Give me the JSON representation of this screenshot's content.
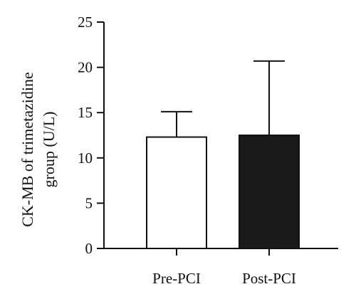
{
  "chart_data": {
    "type": "bar",
    "categories": [
      "Pre-PCI",
      "Post-PCI"
    ],
    "values": [
      12.3,
      12.5
    ],
    "error_upper": [
      15.1,
      20.7
    ],
    "ylabel_lines": [
      "CK-MB of trimetazidine",
      "group (U/L)"
    ],
    "ylim": [
      0,
      25
    ],
    "yticks": [
      0,
      5,
      10,
      15,
      20,
      25
    ],
    "grid": false,
    "legend": "none",
    "bar_fill_colors": [
      "#ffffff",
      "#1a1a1a"
    ],
    "bar_stroke_color": "#111111"
  }
}
